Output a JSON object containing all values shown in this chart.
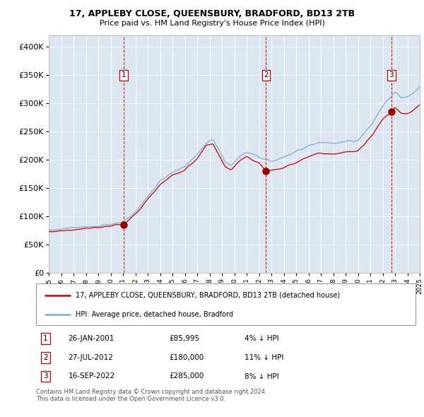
{
  "title": "17, APPLEBY CLOSE, QUEENSBURY, BRADFORD, BD13 2TB",
  "subtitle": "Price paid vs. HM Land Registry's House Price Index (HPI)",
  "legend_line1": "17, APPLEBY CLOSE, QUEENSBURY, BRADFORD, BD13 2TB (detached house)",
  "legend_line2": "HPI: Average price, detached house, Bradford",
  "table_rows": [
    {
      "label": "1",
      "date": "26-JAN-2001",
      "price": "£85,995",
      "hpi": "4% ↓ HPI"
    },
    {
      "label": "2",
      "date": "27-JUL-2012",
      "price": "£180,000",
      "hpi": "11% ↓ HPI"
    },
    {
      "label": "3",
      "date": "16-SEP-2022",
      "price": "£285,000",
      "hpi": "8% ↓ HPI"
    }
  ],
  "footer": "Contains HM Land Registry data © Crown copyright and database right 2024.\nThis data is licensed under the Open Government Licence v3.0.",
  "hpi_color": "#7aaed4",
  "price_color": "#cc0000",
  "marker_color": "#990000",
  "bg_color": "#dce6f1",
  "grid_color": "#ffffff",
  "ylim": [
    0,
    420000
  ],
  "yticks": [
    0,
    50000,
    100000,
    150000,
    200000,
    250000,
    300000,
    350000,
    400000
  ],
  "x_start_year": 1995,
  "x_end_year": 2025,
  "sale_years_decimal": [
    2001.07,
    2012.57,
    2022.71
  ],
  "sale_prices": [
    85995,
    180000,
    285000
  ],
  "sale_labels": [
    "1",
    "2",
    "3"
  ]
}
